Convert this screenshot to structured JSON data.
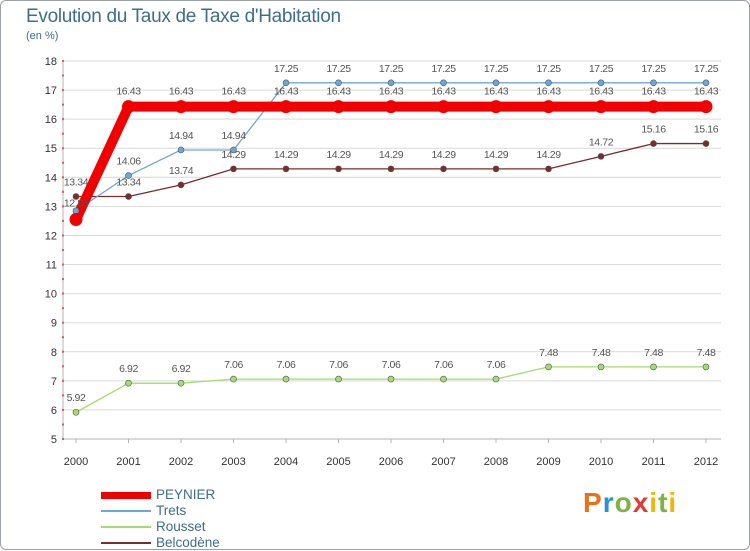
{
  "title": "Evolution du Taux de Taxe d'Habitation",
  "unit": "(en %)",
  "brand": "Proxiti",
  "colors": {
    "title": "#3d6e8f",
    "grid": "#d9d9d9",
    "axis": "#b5b5b5",
    "tick_label": "#333333",
    "value_label": "#555555",
    "peynier": "#f00000",
    "trets": "#6ea6d9",
    "rousset": "#a4dc6f",
    "belcodene": "#7a2c2c"
  },
  "chart_data": {
    "type": "line",
    "title": "Evolution du Taux de Taxe d'Habitation",
    "ylabel": "(en %)",
    "xlabel": "",
    "ylim": [
      5,
      18
    ],
    "yticks": [
      5,
      6,
      7,
      8,
      9,
      10,
      11,
      12,
      13,
      14,
      15,
      16,
      17,
      18
    ],
    "grid": "horizontal",
    "legend_position": "bottom-left",
    "categories": [
      "2000",
      "2001",
      "2002",
      "2003",
      "2004",
      "2005",
      "2006",
      "2007",
      "2008",
      "2009",
      "2010",
      "2011",
      "2012"
    ],
    "series": [
      {
        "name": "PEYNIER",
        "color": "#f00000",
        "values": [
          12.55,
          16.43,
          16.43,
          16.43,
          16.43,
          16.43,
          16.43,
          16.43,
          16.43,
          16.43,
          16.43,
          16.43,
          16.43
        ],
        "labels": [
          "",
          "16.43",
          "16.43",
          "16.43",
          "16.43",
          "16.43",
          "16.43",
          "16.43",
          "16.43",
          "16.43",
          "16.43",
          "16.43",
          "16.43"
        ]
      },
      {
        "name": "Trets",
        "color": "#6ea6d9",
        "values": [
          12.85,
          14.06,
          14.94,
          14.94,
          17.25,
          17.25,
          17.25,
          17.25,
          17.25,
          17.25,
          17.25,
          17.25,
          17.25
        ],
        "labels": [
          "12.85",
          "14.06",
          "14.94",
          "14.94",
          "17.25",
          "17.25",
          "17.25",
          "17.25",
          "17.25",
          "17.25",
          "17.25",
          "17.25",
          "17.25"
        ]
      },
      {
        "name": "Rousset",
        "color": "#a4dc6f",
        "values": [
          5.92,
          6.92,
          6.92,
          7.06,
          7.06,
          7.06,
          7.06,
          7.06,
          7.06,
          7.48,
          7.48,
          7.48,
          7.48
        ],
        "labels": [
          "5.92",
          "6.92",
          "6.92",
          "7.06",
          "7.06",
          "7.06",
          "7.06",
          "7.06",
          "7.06",
          "7.48",
          "7.48",
          "7.48",
          "7.48"
        ]
      },
      {
        "name": "Belcodène",
        "color": "#7a2c2c",
        "values": [
          13.34,
          13.34,
          13.74,
          14.29,
          14.29,
          14.29,
          14.29,
          14.29,
          14.29,
          14.29,
          14.72,
          15.16,
          15.16
        ],
        "labels": [
          "13.34",
          "13.34",
          "13.74",
          "14.29",
          "14.29",
          "14.29",
          "14.29",
          "14.29",
          "14.29",
          "14.29",
          "14.72",
          "15.16",
          "15.16"
        ]
      }
    ]
  }
}
